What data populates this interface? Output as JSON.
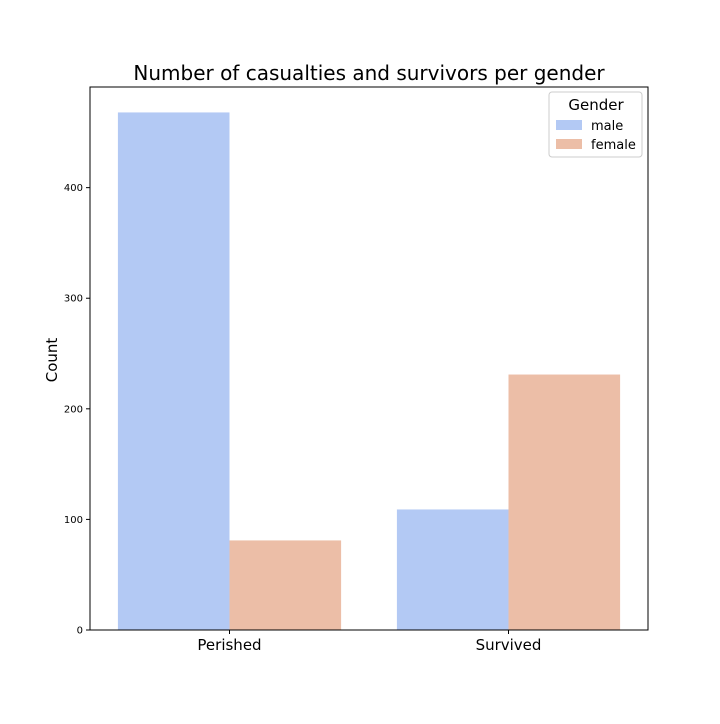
{
  "chart_data": {
    "type": "bar",
    "title": "Number of casualties and survivors per gender",
    "xlabel": "",
    "ylabel": "Count",
    "categories": [
      "Perished",
      "Survived"
    ],
    "series": [
      {
        "name": "male",
        "color": "#b3c9f4",
        "values": [
          468,
          109
        ]
      },
      {
        "name": "female",
        "color": "#ecbea7",
        "values": [
          81,
          231
        ]
      }
    ],
    "yticks": [
      0,
      100,
      200,
      300,
      400
    ],
    "ylim": [
      0,
      491
    ],
    "grid": false,
    "legend": {
      "title": "Gender",
      "position": "top-right"
    }
  }
}
